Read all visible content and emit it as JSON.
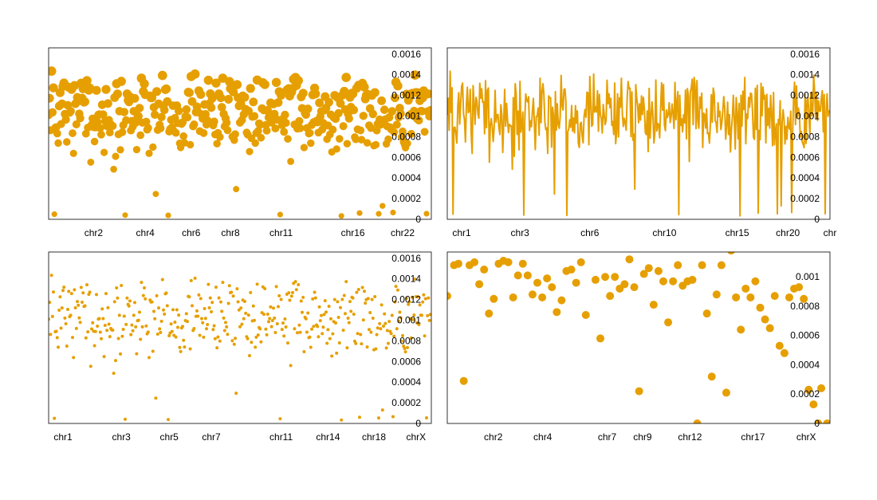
{
  "colors": {
    "series": "#e69f00",
    "axis": "#000000",
    "background": "#ffffff"
  },
  "chart_data": [
    {
      "type": "scatter",
      "marker": "dot-sized",
      "ylim": [
        0,
        0.00166
      ],
      "ytick_labels": [
        "0",
        "0.0002",
        "0.0004",
        "0.0006",
        "0.0008",
        "0.001",
        "0.0012",
        "0.0014",
        "0.0016"
      ],
      "yticks": [
        0,
        0.0002,
        0.0004,
        0.0006,
        0.0008,
        0.001,
        0.0012,
        0.0014,
        0.0016
      ],
      "xlim": [
        0,
        400
      ],
      "xtick_labels": [
        "chr2",
        "chr4",
        "chr6",
        "chr8",
        "chr11",
        "chr16",
        "chr22"
      ],
      "xticks": [
        47,
        101,
        149,
        190,
        243,
        318,
        370
      ],
      "grid": false,
      "legend": "none",
      "seed": 7,
      "count": 400
    },
    {
      "type": "line",
      "ylim": [
        0,
        0.00166
      ],
      "ytick_labels": [
        "0",
        "0.0002",
        "0.0004",
        "0.0006",
        "0.0008",
        "0.001",
        "0.0012",
        "0.0014",
        "0.0016"
      ],
      "yticks": [
        0,
        0.0002,
        0.0004,
        0.0006,
        0.0008,
        0.001,
        0.0012,
        0.0014,
        0.0016
      ],
      "xlim": [
        0,
        400
      ],
      "xtick_labels": [
        "chr1",
        "chr3",
        "chr6",
        "chr10",
        "chr15",
        "chr20",
        "chr"
      ],
      "xticks": [
        15,
        76,
        149,
        227,
        303,
        356,
        400
      ],
      "grid": false,
      "legend": "none",
      "seed": 7,
      "count": 400
    },
    {
      "type": "scatter",
      "marker": "small-dot",
      "ylim": [
        0,
        0.00166
      ],
      "ytick_labels": [
        "0",
        "0.0002",
        "0.0004",
        "0.0006",
        "0.0008",
        "0.001",
        "0.0012",
        "0.0014",
        "0.0016"
      ],
      "yticks": [
        0,
        0.0002,
        0.0004,
        0.0006,
        0.0008,
        0.001,
        0.0012,
        0.0014,
        0.0016
      ],
      "xlim": [
        0,
        400
      ],
      "xtick_labels": [
        "chr1",
        "chr3",
        "chr5",
        "chr7",
        "chr11",
        "chr14",
        "chr18",
        "chrX"
      ],
      "xticks": [
        15,
        76,
        126,
        170,
        243,
        292,
        340,
        384
      ],
      "grid": false,
      "legend": "none",
      "seed": 7,
      "count": 400
    },
    {
      "type": "scatter",
      "marker": "large-dot",
      "ylim": [
        0,
        0.00117
      ],
      "ytick_labels": [
        "0",
        "0.0002",
        "0.0004",
        "0.0006",
        "0.0008",
        "0.001"
      ],
      "yticks": [
        0,
        0.0002,
        0.0004,
        0.0006,
        0.0008,
        0.001
      ],
      "xlim": [
        0,
        79
      ],
      "xtick_labels": [
        "chr2",
        "chr4",
        "chr7",
        "chr9",
        "chr12",
        "chr17",
        "chrX"
      ],
      "xticks": [
        9.5,
        19.7,
        33,
        40.3,
        50.1,
        63.1,
        74.1
      ],
      "grid": false,
      "legend": "none",
      "points": [
        [
          0,
          0.00087
        ],
        [
          1.4,
          0.00108
        ],
        [
          2.3,
          0.00109
        ],
        [
          3.4,
          0.00029
        ],
        [
          4.6,
          0.00108
        ],
        [
          5.6,
          0.0011
        ],
        [
          6.6,
          0.00095
        ],
        [
          7.6,
          0.00105
        ],
        [
          8.6,
          0.00075
        ],
        [
          9.6,
          0.00085
        ],
        [
          10.6,
          0.00109
        ],
        [
          11.6,
          0.00111
        ],
        [
          12.6,
          0.0011
        ],
        [
          13.6,
          0.00086
        ],
        [
          14.6,
          0.00101
        ],
        [
          15.6,
          0.00109
        ],
        [
          16.6,
          0.00101
        ],
        [
          17.6,
          0.00088
        ],
        [
          18.6,
          0.00096
        ],
        [
          19.6,
          0.00086
        ],
        [
          20.6,
          0.00099
        ],
        [
          21.6,
          0.00093
        ],
        [
          22.6,
          0.00076
        ],
        [
          23.6,
          0.00084
        ],
        [
          24.6,
          0.00104
        ],
        [
          25.6,
          0.00105
        ],
        [
          26.6,
          0.00096
        ],
        [
          27.6,
          0.0011
        ],
        [
          28.6,
          0.00074
        ],
        [
          29.6,
          0.0012
        ],
        [
          30.6,
          0.00098
        ],
        [
          31.6,
          0.00058
        ],
        [
          32.6,
          0.001
        ],
        [
          33.6,
          0.00087
        ],
        [
          34.6,
          0.001
        ],
        [
          35.6,
          0.00092
        ],
        [
          36.6,
          0.00095
        ],
        [
          37.6,
          0.00112
        ],
        [
          38.6,
          0.00093
        ],
        [
          39.6,
          0.00022
        ],
        [
          40.6,
          0.00102
        ],
        [
          41.6,
          0.00106
        ],
        [
          42.6,
          0.00081
        ],
        [
          43.6,
          0.00104
        ],
        [
          44.6,
          0.00097
        ],
        [
          45.6,
          0.00069
        ],
        [
          46.6,
          0.00097
        ],
        [
          47.6,
          0.00108
        ],
        [
          48.6,
          0.00094
        ],
        [
          49.6,
          0.00097
        ],
        [
          50.6,
          0.00098
        ],
        [
          51.6,
          0.0
        ],
        [
          52.6,
          0.00108
        ],
        [
          53.6,
          0.00075
        ],
        [
          54.6,
          0.00032
        ],
        [
          55.6,
          0.00088
        ],
        [
          56.6,
          0.00108
        ],
        [
          57.6,
          0.00021
        ],
        [
          58.6,
          0.00118
        ],
        [
          59.6,
          0.00086
        ],
        [
          60.6,
          0.00064
        ],
        [
          61.6,
          0.00092
        ],
        [
          62.6,
          0.00086
        ],
        [
          63.6,
          0.00097
        ],
        [
          64.6,
          0.00079
        ],
        [
          65.6,
          0.00071
        ],
        [
          66.6,
          0.00065
        ],
        [
          67.6,
          0.00087
        ],
        [
          68.6,
          0.00053
        ],
        [
          69.6,
          0.00048
        ],
        [
          70.6,
          0.00086
        ],
        [
          71.6,
          0.00092
        ],
        [
          72.6,
          0.00093
        ],
        [
          73.6,
          0.00085
        ],
        [
          74.6,
          0.00023
        ],
        [
          75.6,
          0.00013
        ],
        [
          76.6,
          0.0
        ],
        [
          77.2,
          0.00024
        ],
        [
          78.4,
          0.0
        ]
      ]
    }
  ]
}
